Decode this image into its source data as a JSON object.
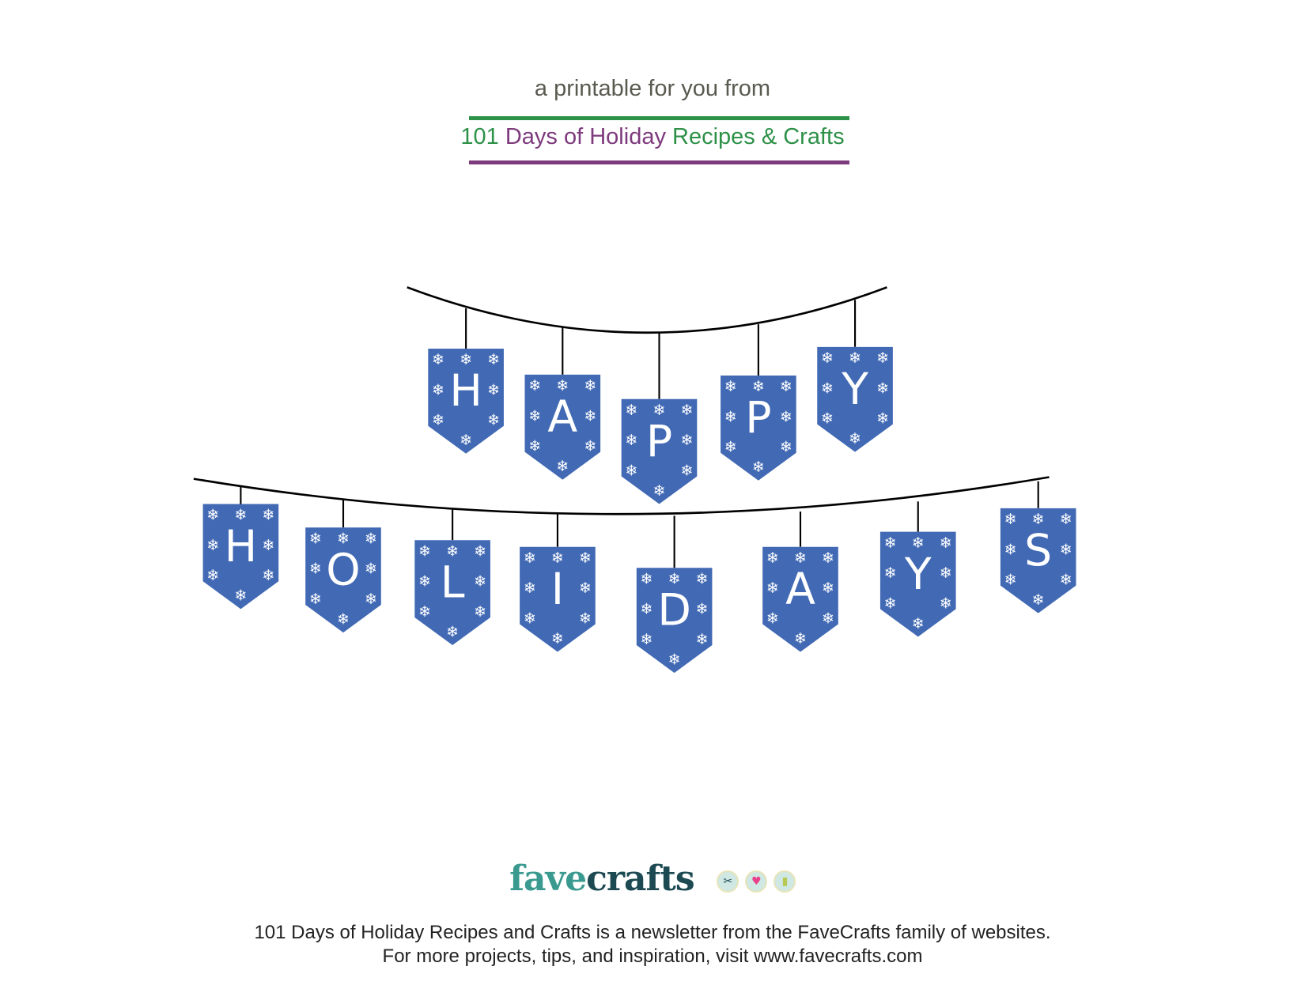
{
  "header": {
    "intro": "a printable for you from",
    "subtitle_part1": "101",
    "subtitle_part2": "Days of Holiday",
    "subtitle_part3": "Recipes & Crafts",
    "colors": {
      "green": "#2e9148",
      "purple": "#7d3a7d",
      "gray": "#5a5a50"
    }
  },
  "banner": {
    "row1_letters": [
      "H",
      "A",
      "P",
      "P",
      "Y"
    ],
    "row2_letters": [
      "H",
      "O",
      "L",
      "I",
      "D",
      "A",
      "Y",
      "S"
    ],
    "pennant_color": "#4169b4",
    "snowflake_icon": "snowflake-icon"
  },
  "logo": {
    "part1": "fave",
    "part2": "crafts",
    "icons": [
      "scissors-icon",
      "heart-icon",
      "thread-spool-icon"
    ],
    "colors": {
      "fave": "#3a9a8f",
      "crafts": "#1d4a52"
    }
  },
  "footer": {
    "line1": "101 Days of Holiday Recipes and Crafts is a newsletter from the FaveCrafts family of websites.",
    "line2": "For more projects, tips, and inspiration, visit www.favecrafts.com"
  }
}
